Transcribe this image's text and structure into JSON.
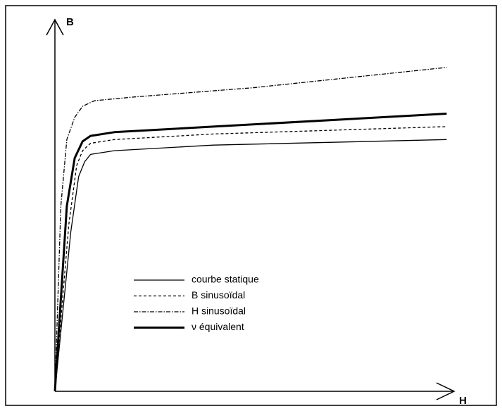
{
  "chart_data": {
    "type": "line",
    "y_label": "B",
    "x_label": "H",
    "xlim": [
      0,
      100
    ],
    "ylim": [
      0,
      100
    ],
    "series": [
      {
        "name": "courbe statique",
        "color": "#000000",
        "style": "solid",
        "width": 1.3,
        "x": [
          0,
          4,
          6,
          7.5,
          9,
          15,
          40,
          99
        ],
        "values": [
          0,
          43,
          58,
          62,
          64,
          65,
          66.5,
          68
        ]
      },
      {
        "name": "B sinusoïdal",
        "color": "#000000",
        "style": "dashed",
        "width": 1.3,
        "x": [
          0,
          3.5,
          5.5,
          7,
          9,
          15,
          40,
          99
        ],
        "values": [
          0,
          45,
          61,
          65,
          67,
          68,
          69.5,
          71.5
        ]
      },
      {
        "name": "H sinusoïdal",
        "color": "#000000",
        "style": "dashdot",
        "width": 1.3,
        "x": [
          0,
          1.5,
          3,
          5,
          7,
          10,
          20,
          50,
          99
        ],
        "values": [
          0,
          50,
          68,
          74,
          77,
          78.5,
          79.5,
          82,
          87.5
        ]
      },
      {
        "name": "ν équivalent",
        "color": "#000000",
        "style": "solid",
        "width": 3,
        "x": [
          0,
          3,
          5,
          7,
          9,
          15,
          40,
          99
        ],
        "values": [
          0,
          50,
          63,
          67.5,
          69,
          70,
          71.5,
          75
        ]
      }
    ]
  }
}
